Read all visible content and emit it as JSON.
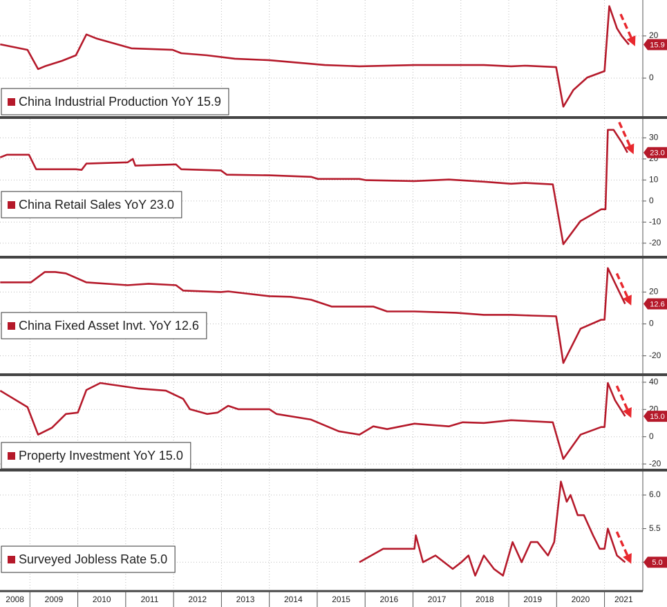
{
  "chart_data": [
    {
      "type": "line",
      "xlim": [
        2008.375,
        2021.8
      ],
      "ylim": [
        -18,
        37
      ],
      "yticks": [
        0,
        20
      ],
      "grid": true,
      "end_label": "15.9",
      "x": [
        2008.38,
        2008.95,
        2009.17,
        2009.31,
        2009.67,
        2009.96,
        2010.18,
        2010.4,
        2011.12,
        2011.98,
        2012.16,
        2012.7,
        2013.28,
        2014.0,
        2015.16,
        2015.88,
        2017.03,
        2018.48,
        2019.05,
        2019.34,
        2019.99,
        2020.14,
        2020.35,
        2020.64,
        2021.0,
        2021.1,
        2021.26,
        2021.36,
        2021.51
      ],
      "series": [
        {
          "name": "China Industrial Production YoY 15.9",
          "color": "#b5192a",
          "values": [
            16.0,
            13.4,
            4.3,
            5.6,
            8.2,
            10.8,
            20.7,
            18.7,
            14.1,
            13.4,
            11.8,
            10.8,
            9.2,
            8.5,
            6.2,
            5.6,
            6.2,
            6.2,
            5.6,
            5.9,
            5.2,
            -13.5,
            -5.6,
            0.3,
            3.3,
            34.1,
            23.6,
            20,
            15.9
          ]
        }
      ]
    },
    {
      "type": "line",
      "xlim": [
        2008.375,
        2021.8
      ],
      "ylim": [
        -26,
        39
      ],
      "yticks": [
        30,
        20,
        10,
        0,
        -10,
        -20
      ],
      "grid": true,
      "end_label": "23.0",
      "x": [
        2008.38,
        2008.52,
        2008.98,
        2009.13,
        2009.96,
        2010.08,
        2010.18,
        2011.04,
        2011.15,
        2011.2,
        2012.05,
        2012.16,
        2012.99,
        2013.11,
        2014.0,
        2014.87,
        2015.01,
        2015.88,
        2016.02,
        2017.03,
        2017.75,
        2018.48,
        2019.05,
        2019.34,
        2019.92,
        2020.14,
        2020.5,
        2020.93,
        2021.02,
        2021.07,
        2021.19,
        2021.36,
        2021.48
      ],
      "series": [
        {
          "name": "China Retail Sales YoY 23.0",
          "color": "#b5192a",
          "values": [
            20.7,
            22,
            22,
            15.1,
            15.1,
            14.8,
            17.8,
            18.4,
            20,
            16.8,
            17.4,
            15.1,
            14.5,
            12.5,
            12.2,
            11.5,
            10.5,
            10.5,
            9.9,
            9.5,
            10.2,
            9.2,
            8.2,
            8.6,
            7.9,
            -20.5,
            -9.5,
            -3.9,
            -3.9,
            33.8,
            33.8,
            27.9,
            23.0
          ]
        }
      ]
    },
    {
      "type": "line",
      "xlim": [
        2008.375,
        2021.8
      ],
      "ylim": [
        -31,
        41
      ],
      "yticks": [
        20,
        0,
        -20
      ],
      "grid": true,
      "end_label": "12.6",
      "x": [
        2008.38,
        2009.02,
        2009.31,
        2009.53,
        2009.75,
        2010.18,
        2011.04,
        2011.48,
        2012.05,
        2012.2,
        2012.99,
        2013.14,
        2014.0,
        2014.44,
        2014.87,
        2015.3,
        2016.17,
        2016.46,
        2017.03,
        2017.9,
        2018.48,
        2019.05,
        2019.49,
        2019.99,
        2020.14,
        2020.5,
        2020.93,
        2021.0,
        2021.07,
        2021.22,
        2021.43
      ],
      "series": [
        {
          "name": "China Fixed Asset Invt. YoY 12.6",
          "color": "#b5192a",
          "values": [
            26.1,
            26.1,
            32.6,
            32.6,
            31.7,
            26.1,
            24.3,
            25.2,
            24.3,
            20.9,
            20,
            20.4,
            17.4,
            17,
            15.2,
            10.9,
            10.9,
            7.8,
            7.8,
            7,
            5.7,
            5.7,
            5.2,
            4.8,
            -24.5,
            -3,
            2.6,
            2.6,
            35,
            25.6,
            12.6
          ]
        }
      ]
    },
    {
      "type": "line",
      "xlim": [
        2008.375,
        2021.8
      ],
      "ylim": [
        -23.5,
        44.5
      ],
      "yticks": [
        40,
        20,
        0,
        -20
      ],
      "grid": true,
      "end_label": "15.0",
      "x": [
        2008.38,
        2008.95,
        2009.17,
        2009.46,
        2009.75,
        2010.0,
        2010.18,
        2010.47,
        2010.97,
        2011.26,
        2011.84,
        2012.2,
        2012.34,
        2012.7,
        2012.92,
        2013.14,
        2013.35,
        2014.0,
        2014.15,
        2014.87,
        2015.45,
        2015.88,
        2016.17,
        2016.46,
        2017.03,
        2017.75,
        2018.04,
        2018.48,
        2019.05,
        2019.92,
        2020.14,
        2020.5,
        2020.93,
        2021.0,
        2021.07,
        2021.22,
        2021.43
      ],
      "series": [
        {
          "name": "Property Investment YoY 15.0",
          "color": "#b5192a",
          "values": [
            33.8,
            21.7,
            1.5,
            6.6,
            16.7,
            17.7,
            34.3,
            39.4,
            36.9,
            35.4,
            33.8,
            27.8,
            20.2,
            16.7,
            17.7,
            22.7,
            20.2,
            20.2,
            16.7,
            12.6,
            4,
            1.5,
            7.6,
            5.6,
            9.6,
            7.6,
            10.6,
            10.1,
            12.1,
            10.6,
            -16.3,
            1.5,
            7.1,
            7.1,
            39.4,
            26.8,
            15.0
          ]
        }
      ]
    },
    {
      "type": "line",
      "xlim": [
        2008.375,
        2021.8
      ],
      "ylim": [
        4.57,
        6.35
      ],
      "yticks": [
        {
          "value": 6,
          "label": "6.0"
        },
        {
          "value": 5.5,
          "label": "5.5"
        },
        {
          "value": 5,
          "label": "5.0"
        }
      ],
      "grid": true,
      "end_label": "5.0",
      "categories": [
        "2008",
        "2009",
        "2010",
        "2011",
        "2012",
        "2013",
        "2014",
        "2015",
        "2016",
        "2017",
        "2018",
        "2019",
        "2020",
        "2021"
      ],
      "xticks": [
        2009,
        2010,
        2011,
        2012,
        2013,
        2014,
        2015,
        2016,
        2017,
        2018,
        2019,
        2020,
        2021
      ],
      "x": [
        2015.88,
        2016.38,
        2017.03,
        2017.06,
        2017.21,
        2017.47,
        2017.83,
        2018.01,
        2018.16,
        2018.3,
        2018.48,
        2018.69,
        2018.88,
        2019.08,
        2019.27,
        2019.46,
        2019.6,
        2019.82,
        2019.95,
        2020.09,
        2020.21,
        2020.29,
        2020.44,
        2020.57,
        2020.76,
        2020.9,
        2021.0,
        2021.07,
        2021.26,
        2021.43
      ],
      "series": [
        {
          "name": "Surveyed Jobless Rate 5.0",
          "color": "#b5192a",
          "values": [
            5.0,
            5.2,
            5.2,
            5.4,
            5.0,
            5.1,
            4.9,
            5.0,
            5.1,
            4.8,
            5.1,
            4.9,
            4.8,
            5.3,
            5.0,
            5.3,
            5.3,
            5.1,
            5.3,
            6.2,
            5.9,
            6.0,
            5.7,
            5.7,
            5.4,
            5.2,
            5.2,
            5.5,
            5.1,
            5.0
          ]
        }
      ]
    }
  ]
}
